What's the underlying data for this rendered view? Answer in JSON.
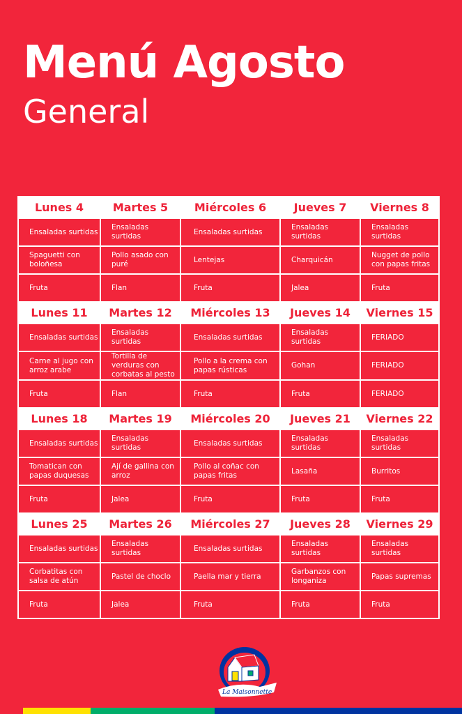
{
  "title": "Menú Agosto",
  "subtitle": "General",
  "weeks": [
    {
      "days": [
        "Lunes 4",
        "Martes 5",
        "Miércoles 6",
        "Jueves 7",
        "Viernes 8"
      ],
      "rows": [
        [
          "Ensaladas surtidas",
          "Ensaladas surtidas",
          "Ensaladas surtidas",
          "Ensaladas surtidas",
          "Ensaladas surtidas"
        ],
        [
          "Spaguetti con boloñesa",
          "Pollo asado con puré",
          "Lentejas",
          "Charquicán",
          "Nugget de pollo con papas fritas"
        ],
        [
          "Fruta",
          "Flan",
          "Fruta",
          "Jalea",
          "Fruta"
        ]
      ]
    },
    {
      "days": [
        "Lunes 11",
        "Martes 12",
        "Miércoles 13",
        "Jueves 14",
        "Viernes 15"
      ],
      "rows": [
        [
          "Ensaladas surtidas",
          "Ensaladas surtidas",
          "Ensaladas surtidas",
          "Ensaladas surtidas",
          "FERIADO"
        ],
        [
          "Carne al jugo con arroz arabe",
          "Tortilla de verduras con corbatas al pesto",
          "Pollo a la crema con papas rústicas",
          "Gohan",
          "FERIADO"
        ],
        [
          "Fruta",
          "Flan",
          "Fruta",
          "Fruta",
          "FERIADO"
        ]
      ]
    },
    {
      "days": [
        "Lunes 18",
        "Martes 19",
        "Miércoles 20",
        "Jueves 21",
        "Viernes 22"
      ],
      "rows": [
        [
          "Ensaladas surtidas",
          "Ensaladas surtidas",
          "Ensaladas surtidas",
          "Ensaladas surtidas",
          "Ensaladas surtidas"
        ],
        [
          "Tomatican con papas duquesas",
          "Ají de gallina con arroz",
          "Pollo al coñac con papas fritas",
          "Lasaña",
          "Burritos"
        ],
        [
          "Fruta",
          "Jalea",
          "Fruta",
          "Fruta",
          "Fruta"
        ]
      ]
    },
    {
      "days": [
        "Lunes 25",
        "Martes 26",
        "Miércoles 27",
        "Jueves 28",
        "Viernes 29"
      ],
      "rows": [
        [
          "Ensaladas surtidas",
          "Ensaladas surtidas",
          "Ensaladas surtidas",
          "Ensaladas surtidas",
          "Ensaladas surtidas"
        ],
        [
          "Corbatitas con salsa de atún",
          "Pastel de choclo",
          "Paella mar y tierra",
          "Garbanzos con longaniza",
          "Papas supremas"
        ],
        [
          "Fruta",
          "Jalea",
          "Fruta",
          "Fruta",
          "Fruta"
        ]
      ]
    }
  ],
  "logo": {
    "text": "La Maisonnette"
  },
  "colors": {
    "background": "#f2253b",
    "stripes": [
      "#f2253b",
      "#ffe100",
      "#00ae6a",
      "#0033a0"
    ]
  }
}
